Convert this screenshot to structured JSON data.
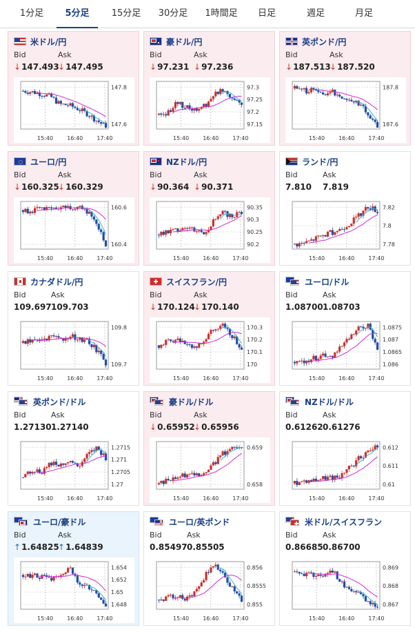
{
  "tabs": [
    {
      "label": "1分足",
      "active": false
    },
    {
      "label": "5分足",
      "active": true
    },
    {
      "label": "15分足",
      "active": false
    },
    {
      "label": "30分足",
      "active": false
    },
    {
      "label": "1時間足",
      "active": false
    },
    {
      "label": "日足",
      "active": false
    },
    {
      "label": "週足",
      "active": false
    },
    {
      "label": "月足",
      "active": false
    }
  ],
  "labels": {
    "bid": "Bid",
    "ask": "Ask"
  },
  "arrows": {
    "down": "↓",
    "up": "↑"
  },
  "colors": {
    "down_bg": "#fbecef",
    "up_bg": "#e9f4fc",
    "bull": "#c8322f",
    "bear": "#1f4fa8",
    "ma1": "#d02ad0",
    "ma2": "#37b4d6"
  },
  "cards": [
    {
      "pair": "米ドル/円",
      "flag": "us-flag",
      "bid": "147.493",
      "ask": "147.495",
      "dir": "down",
      "yticks": [
        "147.8",
        "147.6"
      ],
      "x_ticks": [
        "15:40",
        "16:40",
        "17:40"
      ],
      "trend": [
        0.8,
        0.78,
        0.74,
        0.68,
        0.52,
        0.5,
        0.42,
        0.32,
        0.18,
        0.05
      ]
    },
    {
      "pair": "豪ドル/円",
      "flag": "au-flag",
      "bid": "97.231",
      "ask": "97.236",
      "dir": "down",
      "yticks": [
        "97.3",
        "97.25",
        "97.2",
        "97.15"
      ],
      "x_ticks": [
        "15:40",
        "16:40",
        "17:40"
      ],
      "trend": [
        0.3,
        0.35,
        0.55,
        0.45,
        0.4,
        0.5,
        0.72,
        0.85,
        0.65,
        0.55
      ]
    },
    {
      "pair": "英ポンド/円",
      "flag": "gb-flag",
      "bid": "187.513",
      "ask": "187.520",
      "dir": "down",
      "yticks": [
        "187.8",
        "187.6"
      ],
      "x_ticks": [
        "15:40",
        "16:40",
        "17:40"
      ],
      "trend": [
        0.85,
        0.8,
        0.82,
        0.74,
        0.78,
        0.7,
        0.6,
        0.55,
        0.3,
        0.05
      ]
    },
    {
      "pair": "ユーロ/円",
      "flag": "eu-flag",
      "bid": "160.325",
      "ask": "160.329",
      "dir": "down",
      "yticks": [
        "160.6",
        "160.4"
      ],
      "x_ticks": [
        "15:40",
        "16:40",
        "17:40"
      ],
      "trend": [
        0.82,
        0.8,
        0.84,
        0.82,
        0.86,
        0.88,
        0.86,
        0.8,
        0.55,
        0.1
      ]
    },
    {
      "pair": "NZドル/円",
      "flag": "nz-flag",
      "bid": "90.364",
      "ask": "90.371",
      "dir": "down",
      "yticks": [
        "90.35",
        "90.3",
        "90.25",
        "90.2"
      ],
      "x_ticks": [
        "15:40",
        "16:40",
        "17:40"
      ],
      "trend": [
        0.3,
        0.35,
        0.42,
        0.48,
        0.4,
        0.35,
        0.6,
        0.75,
        0.7,
        0.78
      ]
    },
    {
      "pair": "ランド/円",
      "flag": "za-flag",
      "bid": "7.810",
      "ask": "7.819",
      "dir": "none",
      "yticks": [
        "7.82",
        "7.8",
        "7.78"
      ],
      "x_ticks": [
        "15:40",
        "16:40",
        "17:40"
      ],
      "trend": [
        0.1,
        0.12,
        0.2,
        0.28,
        0.35,
        0.42,
        0.55,
        0.7,
        0.9,
        0.8
      ]
    },
    {
      "pair": "カナダドル/円",
      "flag": "ca-flag",
      "bid": "109.697",
      "ask": "109.703",
      "dir": "none",
      "yticks": [
        "109.8",
        "109.7"
      ],
      "x_ticks": [
        "15:40",
        "16:40",
        "17:40"
      ],
      "trend": [
        0.55,
        0.6,
        0.62,
        0.66,
        0.62,
        0.7,
        0.65,
        0.58,
        0.4,
        0.12
      ]
    },
    {
      "pair": "スイスフラン/円",
      "flag": "ch-flag",
      "bid": "170.124",
      "ask": "170.140",
      "dir": "down",
      "yticks": [
        "170.3",
        "170.2",
        "170.1",
        "170"
      ],
      "x_ticks": [
        "15:40",
        "16:40",
        "17:40"
      ],
      "trend": [
        0.5,
        0.58,
        0.62,
        0.55,
        0.45,
        0.6,
        0.85,
        0.9,
        0.7,
        0.45
      ]
    },
    {
      "pair": "ユーロ/ドル",
      "flag": "eu-us-flag",
      "bid": "1.08700",
      "ask": "1.08703",
      "dir": "none",
      "yticks": [
        "1.0875",
        "1.087",
        "1.0865",
        "1.086"
      ],
      "x_ticks": [
        "15:40",
        "16:40",
        "17:40"
      ],
      "trend": [
        0.15,
        0.18,
        0.22,
        0.3,
        0.28,
        0.45,
        0.65,
        0.85,
        0.9,
        0.45
      ]
    },
    {
      "pair": "英ポンド/ドル",
      "flag": "gb-us-flag",
      "bid": "1.27130",
      "ask": "1.27140",
      "dir": "none",
      "yticks": [
        "1.2715",
        "1.271",
        "1.2705",
        "1.27"
      ],
      "x_ticks": [
        "15:40",
        "16:40",
        "17:40"
      ],
      "trend": [
        0.25,
        0.4,
        0.35,
        0.55,
        0.5,
        0.6,
        0.45,
        0.7,
        0.85,
        0.65
      ]
    },
    {
      "pair": "豪ドル/ドル",
      "flag": "au-us-flag",
      "bid": "0.65952",
      "ask": "0.65956",
      "dir": "down",
      "yticks": [
        "0.659",
        "0.658"
      ],
      "x_ticks": [
        "15:40",
        "16:40",
        "17:40"
      ],
      "trend": [
        0.1,
        0.2,
        0.25,
        0.3,
        0.35,
        0.3,
        0.55,
        0.75,
        0.85,
        0.92
      ]
    },
    {
      "pair": "NZドル/ドル",
      "flag": "nz-us-flag",
      "bid": "0.61262",
      "ask": "0.61276",
      "dir": "none",
      "yticks": [
        "0.612",
        "0.611",
        "0.61"
      ],
      "x_ticks": [
        "15:40",
        "16:40",
        "17:40"
      ],
      "trend": [
        0.12,
        0.18,
        0.2,
        0.22,
        0.24,
        0.28,
        0.45,
        0.65,
        0.78,
        0.92
      ]
    },
    {
      "pair": "ユーロ/豪ドル",
      "flag": "eu-au-flag",
      "bid": "1.64825",
      "ask": "1.64839",
      "dir": "up",
      "yticks": [
        "1.654",
        "1.652",
        "1.65",
        "1.648"
      ],
      "x_ticks": [
        "15:40",
        "16:40",
        "17:40"
      ],
      "trend": [
        0.72,
        0.7,
        0.68,
        0.62,
        0.66,
        0.88,
        0.58,
        0.45,
        0.3,
        0.1
      ]
    },
    {
      "pair": "ユーロ/英ポンド",
      "flag": "eu-gb-flag",
      "bid": "0.85497",
      "ask": "0.85505",
      "dir": "none",
      "yticks": [
        "0.856",
        "0.8555",
        "0.855"
      ],
      "x_ticks": [
        "15:40",
        "16:40",
        "17:40"
      ],
      "trend": [
        0.2,
        0.25,
        0.3,
        0.22,
        0.4,
        0.7,
        0.95,
        0.7,
        0.45,
        0.2
      ]
    },
    {
      "pair": "米ドル/スイスフラン",
      "flag": "us-ch-flag",
      "bid": "0.86685",
      "ask": "0.86700",
      "dir": "none",
      "yticks": [
        "0.869",
        "0.868",
        "0.867"
      ],
      "x_ticks": [
        "15:40",
        "16:40",
        "17:40"
      ],
      "trend": [
        0.78,
        0.75,
        0.7,
        0.72,
        0.85,
        0.55,
        0.42,
        0.3,
        0.15,
        0.08
      ]
    }
  ]
}
